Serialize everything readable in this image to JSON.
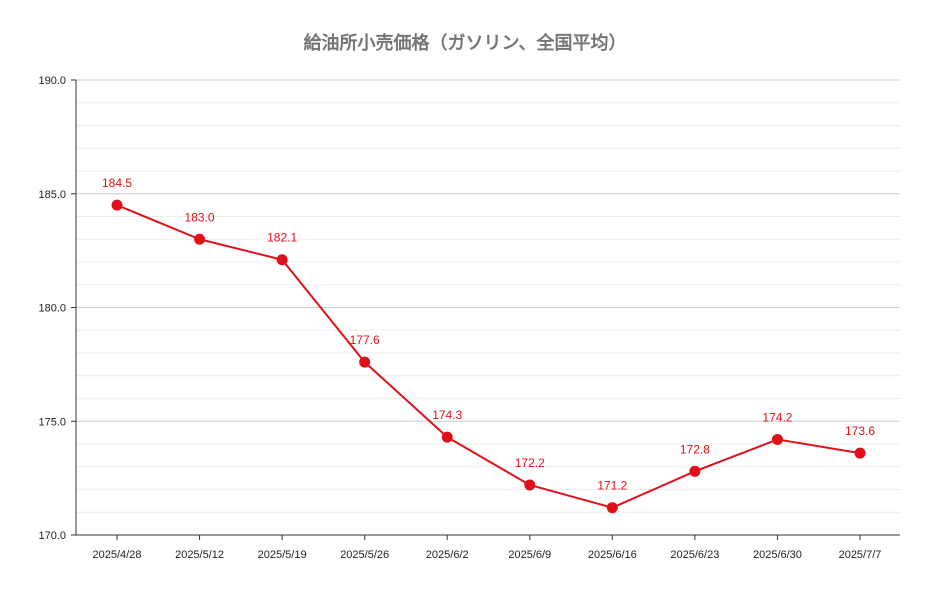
{
  "chart_data": {
    "type": "line",
    "title": "給油所小売価格（ガソリン、全国平均）",
    "xlabel": "",
    "ylabel": "",
    "categories": [
      "2025/4/28",
      "2025/5/12",
      "2025/5/19",
      "2025/5/26",
      "2025/6/2",
      "2025/6/9",
      "2025/6/16",
      "2025/6/23",
      "2025/6/30",
      "2025/7/7"
    ],
    "values": [
      184.5,
      183.0,
      182.1,
      177.6,
      174.3,
      172.2,
      171.2,
      172.8,
      174.2,
      173.6
    ],
    "data_labels": [
      "184.5",
      "183.0",
      "182.1",
      "177.6",
      "174.3",
      "172.2",
      "171.2",
      "172.8",
      "174.2",
      "173.6"
    ],
    "ylim": [
      170.0,
      190.0
    ],
    "yticks": [
      "170.0",
      "175.0",
      "180.0",
      "185.0",
      "190.0"
    ],
    "grid": true,
    "legend": "none",
    "colors": {
      "line": "#e0101a",
      "marker": "#e0101a",
      "label": "#e0101a",
      "title": "#757575",
      "grid_major": "#cccccc",
      "grid_minor": "#ececec"
    }
  }
}
